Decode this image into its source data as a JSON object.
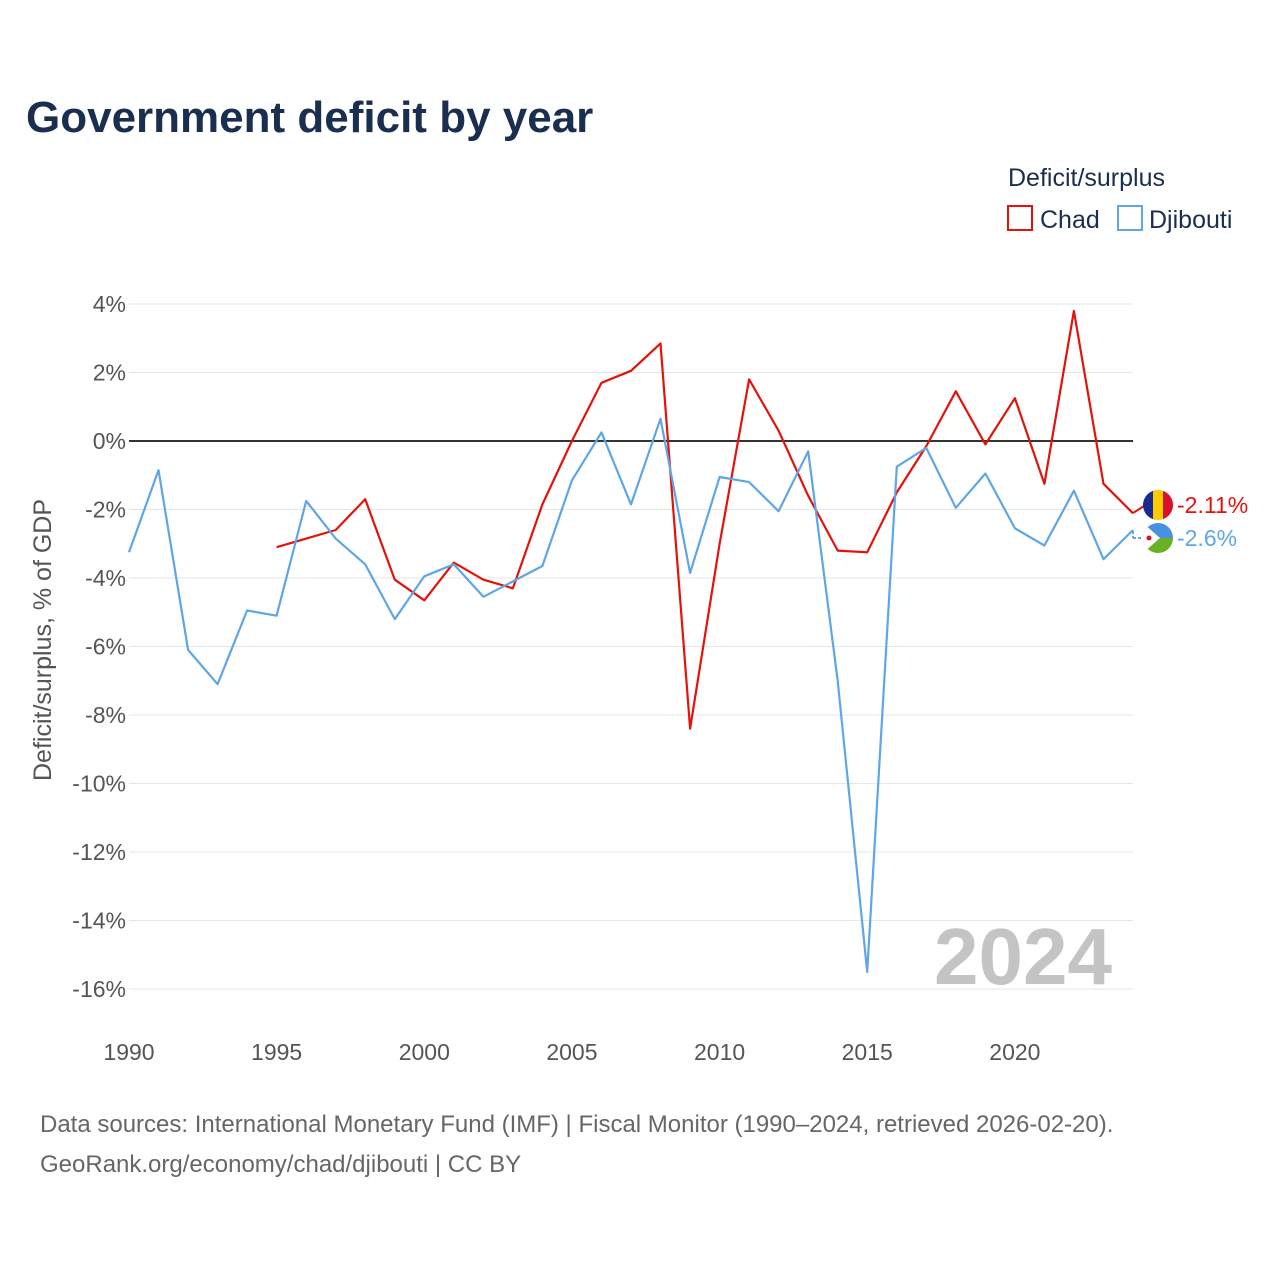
{
  "title": "Government deficit by year",
  "legend": {
    "title": "Deficit/surplus",
    "items": [
      {
        "label": "Chad",
        "color": "#e3120b"
      },
      {
        "label": "Djibouti",
        "color": "#5ea6e6"
      }
    ]
  },
  "watermark_year": "2024",
  "end_labels": {
    "chad": "-2.11%",
    "djibouti": "-2.6%"
  },
  "source_line1": "Data sources: International Monetary Fund (IMF) | Fiscal Monitor (1990–2024, retrieved 2026-02-20).",
  "source_line2": "GeoRank.org/economy/chad/djibouti | CC BY",
  "chart_data": {
    "type": "line",
    "title": "Government deficit by year",
    "xlabel": "",
    "ylabel": "Deficit/surplus, % of GDP",
    "xlim": [
      1990,
      2024
    ],
    "ylim": [
      -17,
      4
    ],
    "x_ticks": [
      1990,
      1995,
      2000,
      2005,
      2010,
      2015,
      2020
    ],
    "y_ticks": [
      4,
      2,
      0,
      -2,
      -4,
      -6,
      -8,
      -10,
      -12,
      -14,
      -16
    ],
    "y_tick_labels": [
      "4%",
      "2%",
      "0%",
      "-2%",
      "-4%",
      "-6%",
      "-8%",
      "-10%",
      "-12%",
      "-14%",
      "-16%"
    ],
    "x_tick_labels": [
      "1990",
      "1995",
      "2000",
      "2005",
      "2010",
      "2015",
      "2020"
    ],
    "series": [
      {
        "name": "Chad",
        "color": "#e3120b",
        "x": [
          1995,
          1996,
          1997,
          1998,
          1999,
          2000,
          2001,
          2002,
          2003,
          2004,
          2005,
          2006,
          2007,
          2008,
          2009,
          2010,
          2011,
          2012,
          2013,
          2014,
          2015,
          2016,
          2017,
          2018,
          2019,
          2020,
          2021,
          2022,
          2023,
          2024
        ],
        "values": [
          -3.1,
          -2.85,
          -2.6,
          -1.7,
          -4.05,
          -4.65,
          -3.55,
          -4.05,
          -4.3,
          -1.85,
          0.0,
          1.7,
          2.05,
          2.85,
          -8.4,
          -3.0,
          1.8,
          0.3,
          -1.6,
          -3.2,
          -3.25,
          -1.5,
          -0.15,
          1.45,
          -0.1,
          1.25,
          -1.25,
          3.8,
          -1.25,
          -2.11
        ]
      },
      {
        "name": "Djibouti",
        "color": "#5ea6e6",
        "x": [
          1990,
          1991,
          1992,
          1993,
          1994,
          1995,
          1996,
          1997,
          1998,
          1999,
          2000,
          2001,
          2002,
          2003,
          2004,
          2005,
          2006,
          2007,
          2008,
          2009,
          2010,
          2011,
          2012,
          2013,
          2014,
          2015,
          2016,
          2017,
          2018,
          2019,
          2020,
          2021,
          2022,
          2023,
          2024
        ],
        "values": [
          -3.25,
          -0.85,
          -6.1,
          -7.1,
          -4.95,
          -5.1,
          -1.75,
          -2.85,
          -3.6,
          -5.2,
          -3.95,
          -3.6,
          -4.55,
          -4.1,
          -3.65,
          -1.15,
          0.25,
          -1.85,
          0.65,
          -3.85,
          -1.05,
          -1.2,
          -2.05,
          -0.3,
          -7.0,
          -15.5,
          -0.75,
          -0.2,
          -1.95,
          -0.95,
          -2.55,
          -3.05,
          -1.45,
          -3.45,
          -2.6
        ]
      }
    ]
  }
}
